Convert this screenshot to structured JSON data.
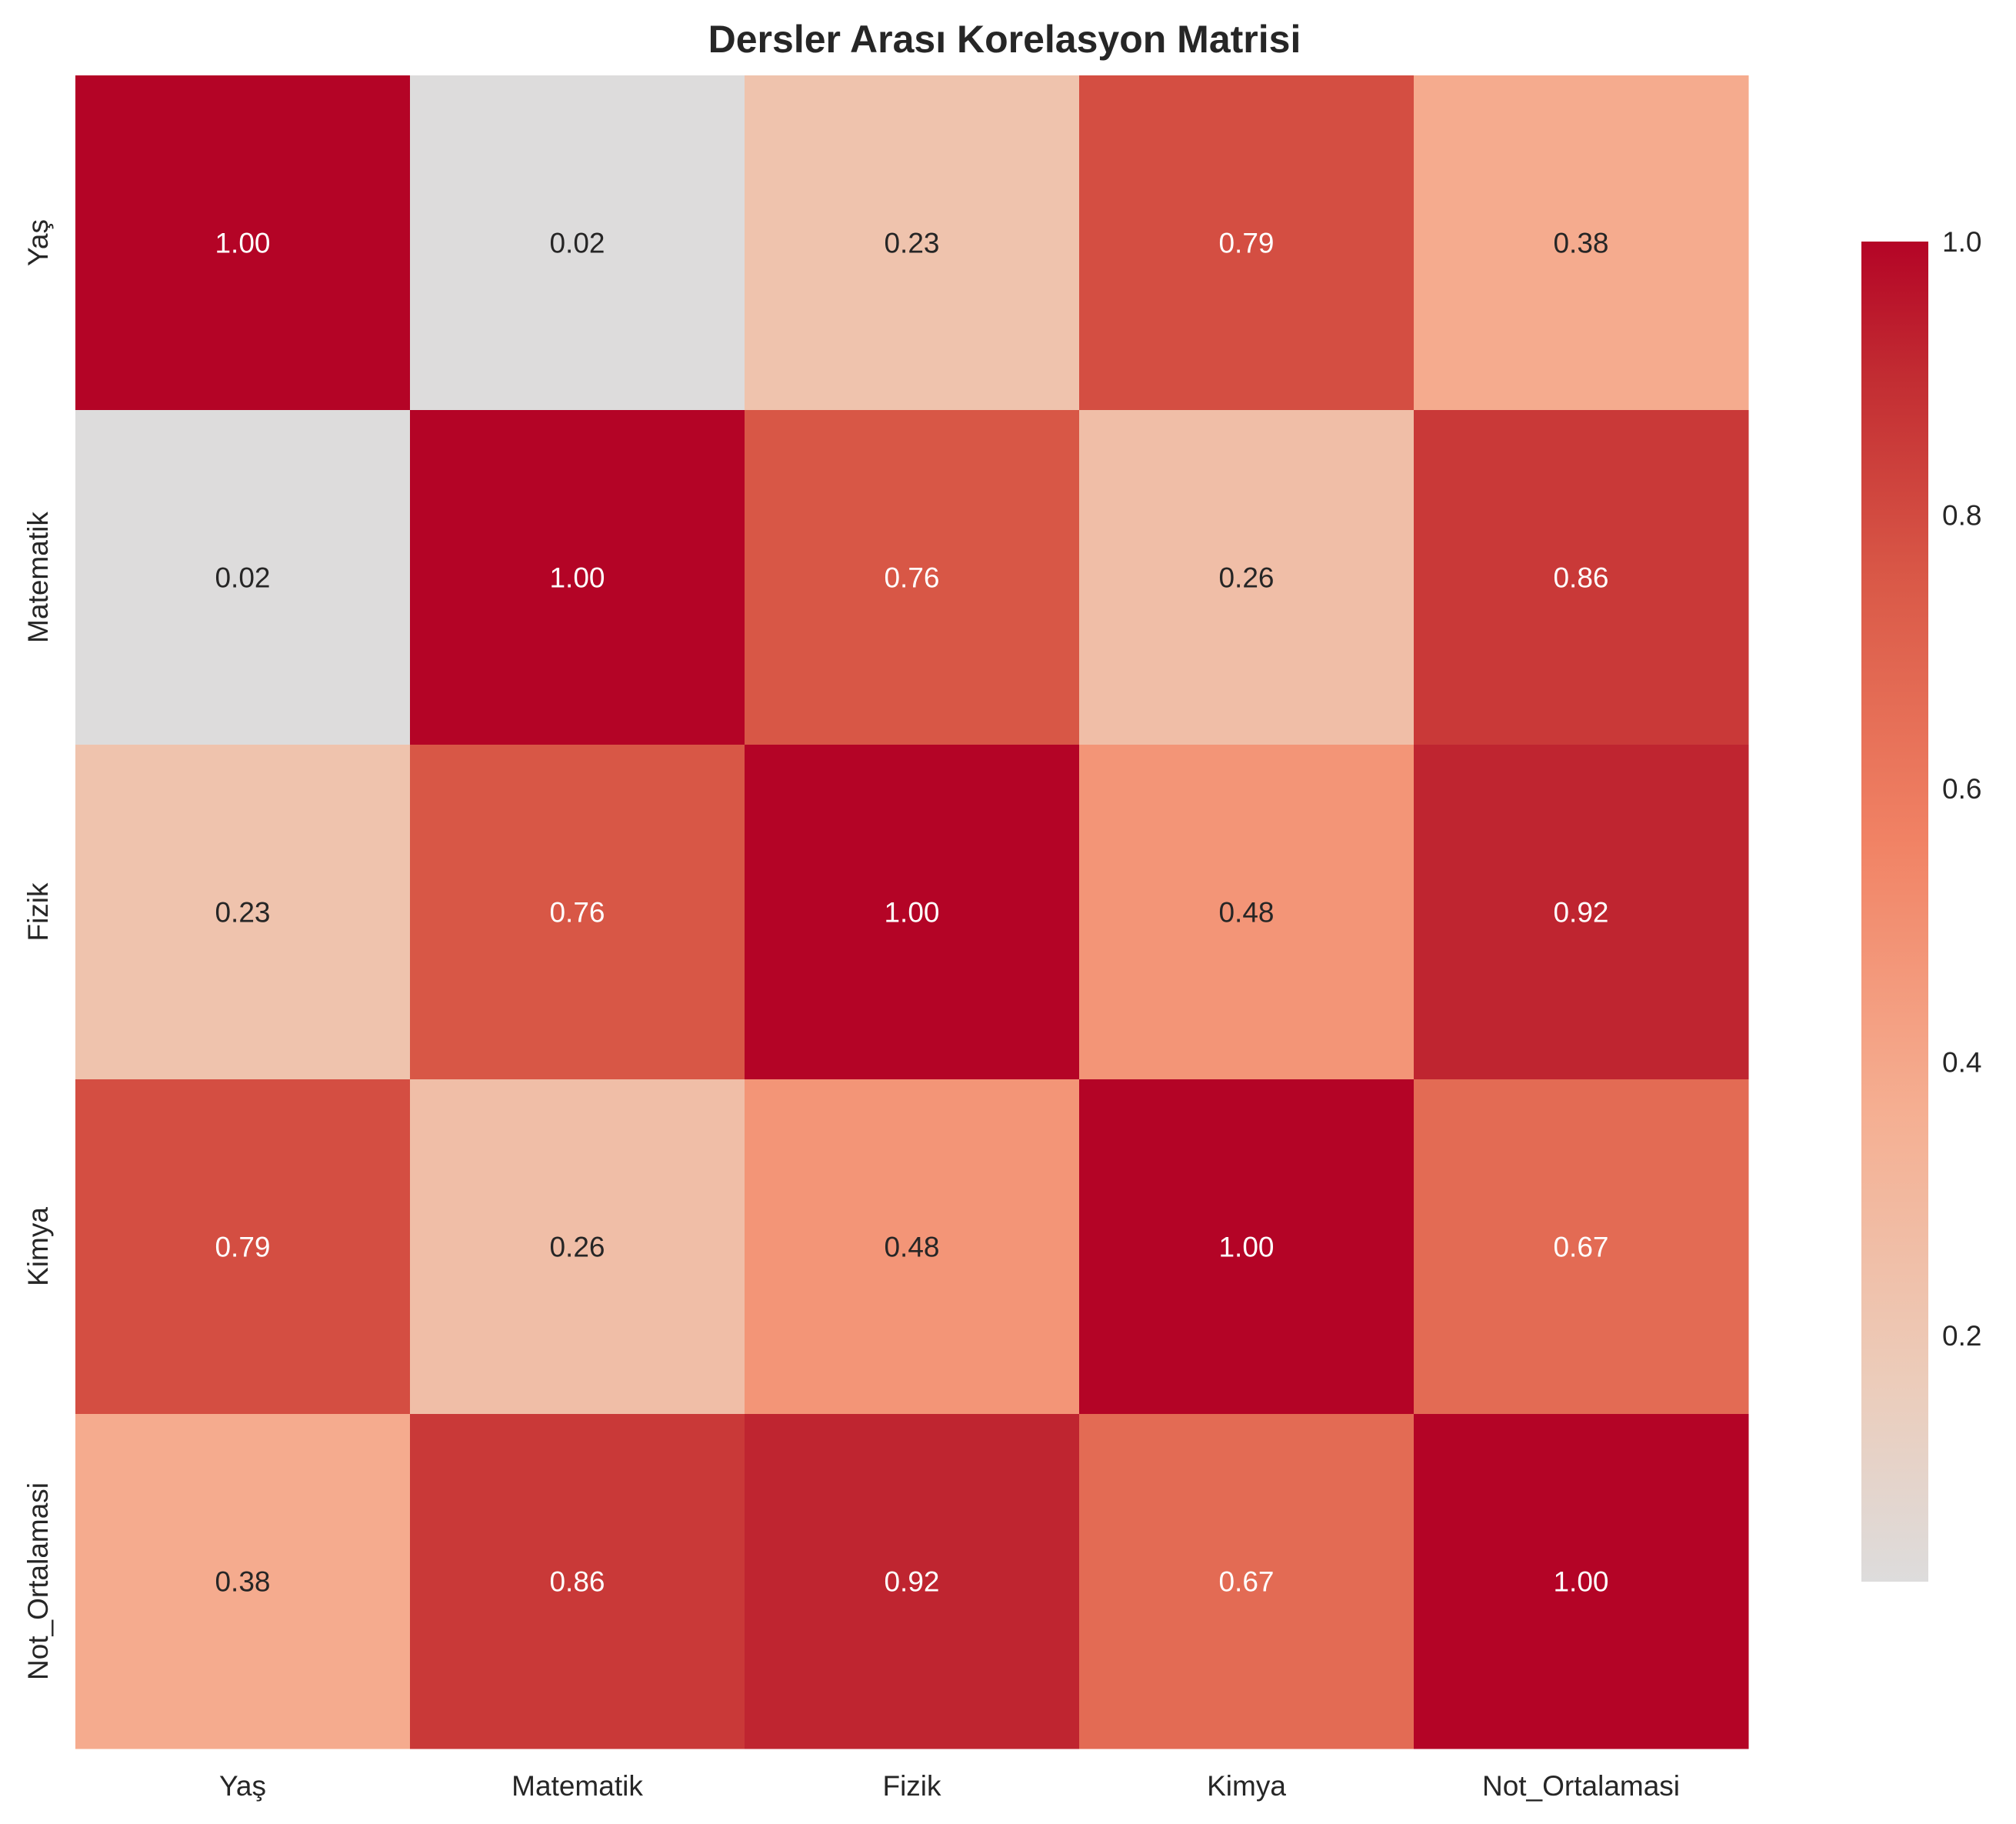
{
  "chart_data": {
    "type": "heatmap",
    "title": "Dersler Arası Korelasyon Matrisi",
    "xlabel": "",
    "ylabel": "",
    "rows": [
      "Yaş",
      "Matematik",
      "Fizik",
      "Kimya",
      "Not_Ortalamasi"
    ],
    "columns": [
      "Yaş",
      "Matematik",
      "Fizik",
      "Kimya",
      "Not_Ortalamasi"
    ],
    "values": [
      [
        1.0,
        0.02,
        0.23,
        0.79,
        0.38
      ],
      [
        0.02,
        1.0,
        0.76,
        0.26,
        0.86
      ],
      [
        0.23,
        0.76,
        1.0,
        0.48,
        0.92
      ],
      [
        0.79,
        0.26,
        0.48,
        1.0,
        0.67
      ],
      [
        0.38,
        0.86,
        0.92,
        0.67,
        1.0
      ]
    ],
    "annotation_format": "0.00",
    "colormap": "coolwarm",
    "colorbar": {
      "range": [
        0.02,
        1.0
      ],
      "ticks": [
        0.2,
        0.4,
        0.6,
        0.8,
        1.0
      ],
      "tick_labels": [
        "0.2",
        "0.4",
        "0.6",
        "0.8",
        "1.0"
      ],
      "placement": "right"
    },
    "grid": false
  }
}
